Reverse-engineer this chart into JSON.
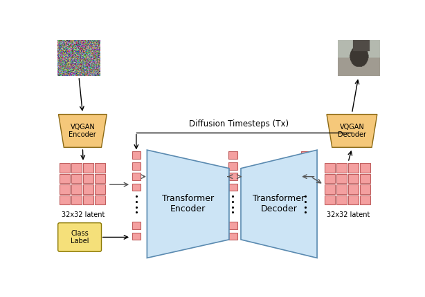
{
  "bg_color": "#ffffff",
  "vqgan_fill": "#f5c87a",
  "vqgan_edge": "#8b6914",
  "latent_fill": "#f4a0a0",
  "latent_edge": "#c06060",
  "class_label_fill": "#f5e07a",
  "class_label_edge": "#8b7800",
  "token_fill": "#f4a0a0",
  "token_edge": "#c06060",
  "transformer_fill": "#cce4f5",
  "transformer_edge": "#5a8ab0",
  "diffusion_label": "Diffusion Timesteps (Tx)",
  "enc_label": "Transformer\nEncoder",
  "dec_label": "Transformer\nDecoder",
  "latent_label": "32x32 latent",
  "class_label_text": "Class\nLabel",
  "vqgan_enc_label": "VQGAN\nEncoder",
  "vqgan_dec_label": "VQGAN\nDecoder"
}
